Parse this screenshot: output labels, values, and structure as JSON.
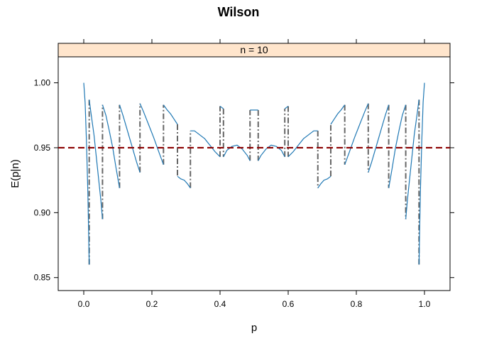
{
  "chart_data": {
    "type": "line",
    "title": "Wilson",
    "panel_label": "n = 10",
    "xlabel": "p",
    "ylabel": "E(p|n)",
    "xlim": [
      -0.075,
      1.075
    ],
    "ylim": [
      0.84,
      1.02
    ],
    "x_ticks": [
      0.0,
      0.2,
      0.4,
      0.6,
      0.8,
      1.0
    ],
    "x_tick_labels": [
      "0.0",
      "0.2",
      "0.4",
      "0.6",
      "0.8",
      "1.0"
    ],
    "y_ticks": [
      0.85,
      0.9,
      0.95,
      1.0
    ],
    "y_tick_labels": [
      "0.85",
      "0.90",
      "0.95",
      "1.00"
    ],
    "reference_line": {
      "y": 0.95,
      "style": "dashed",
      "color": "#8B0000"
    },
    "series_color": "#1f78b4",
    "jump_color": "#666666",
    "strip_fill": "#ffe5cc",
    "segments": [
      {
        "x": [
          0.0,
          0.004,
          0.008,
          0.012,
          0.016
        ],
        "y": [
          1.0,
          0.985,
          0.955,
          0.915,
          0.86
        ]
      },
      {
        "x": [
          0.016,
          0.022,
          0.03,
          0.04,
          0.05,
          0.055
        ],
        "y": [
          0.987,
          0.975,
          0.96,
          0.935,
          0.91,
          0.895
        ]
      },
      {
        "x": [
          0.055,
          0.065,
          0.075,
          0.085,
          0.095,
          0.105
        ],
        "y": [
          0.983,
          0.975,
          0.963,
          0.95,
          0.934,
          0.919
        ]
      },
      {
        "x": [
          0.105,
          0.115,
          0.125,
          0.135,
          0.145,
          0.155,
          0.165
        ],
        "y": [
          0.983,
          0.975,
          0.966,
          0.957,
          0.948,
          0.939,
          0.931
        ]
      },
      {
        "x": [
          0.165,
          0.175,
          0.19,
          0.205,
          0.22,
          0.234
        ],
        "y": [
          0.984,
          0.978,
          0.968,
          0.958,
          0.947,
          0.937
        ]
      },
      {
        "x": [
          0.234,
          0.245,
          0.255,
          0.265,
          0.275
        ],
        "y": [
          0.983,
          0.979,
          0.976,
          0.972,
          0.968
        ]
      },
      {
        "x": [
          0.275,
          0.285,
          0.295,
          0.305,
          0.313
        ],
        "y": [
          0.928,
          0.926,
          0.925,
          0.922,
          0.919
        ]
      },
      {
        "x": [
          0.313,
          0.325,
          0.34,
          0.355,
          0.37,
          0.385,
          0.4
        ],
        "y": [
          0.963,
          0.963,
          0.96,
          0.957,
          0.952,
          0.947,
          0.943
        ]
      },
      {
        "x": [
          0.4,
          0.405,
          0.41
        ],
        "y": [
          0.982,
          0.981,
          0.98
        ]
      },
      {
        "x": [
          0.41,
          0.42,
          0.435,
          0.45,
          0.465,
          0.48,
          0.488
        ],
        "y": [
          0.943,
          0.948,
          0.951,
          0.952,
          0.949,
          0.944,
          0.94
        ]
      },
      {
        "x": [
          0.488,
          0.5,
          0.512
        ],
        "y": [
          0.979,
          0.979,
          0.979
        ]
      },
      {
        "x": [
          0.512,
          0.52,
          0.535,
          0.55,
          0.565,
          0.58,
          0.59
        ],
        "y": [
          0.94,
          0.944,
          0.949,
          0.952,
          0.951,
          0.948,
          0.943
        ]
      },
      {
        "x": [
          0.59,
          0.595,
          0.6
        ],
        "y": [
          0.98,
          0.981,
          0.982
        ]
      },
      {
        "x": [
          0.6,
          0.615,
          0.63,
          0.645,
          0.66,
          0.675,
          0.687
        ],
        "y": [
          0.943,
          0.947,
          0.952,
          0.957,
          0.96,
          0.963,
          0.963
        ]
      },
      {
        "x": [
          0.687,
          0.695,
          0.705,
          0.715,
          0.725
        ],
        "y": [
          0.919,
          0.922,
          0.925,
          0.926,
          0.928
        ]
      },
      {
        "x": [
          0.725,
          0.735,
          0.745,
          0.755,
          0.766
        ],
        "y": [
          0.968,
          0.972,
          0.976,
          0.979,
          0.983
        ]
      },
      {
        "x": [
          0.766,
          0.78,
          0.795,
          0.81,
          0.825,
          0.835
        ],
        "y": [
          0.937,
          0.947,
          0.958,
          0.968,
          0.978,
          0.984
        ]
      },
      {
        "x": [
          0.835,
          0.845,
          0.855,
          0.865,
          0.875,
          0.885,
          0.895
        ],
        "y": [
          0.931,
          0.939,
          0.948,
          0.957,
          0.966,
          0.975,
          0.983
        ]
      },
      {
        "x": [
          0.895,
          0.905,
          0.915,
          0.925,
          0.935,
          0.945
        ],
        "y": [
          0.919,
          0.934,
          0.95,
          0.963,
          0.975,
          0.983
        ]
      },
      {
        "x": [
          0.945,
          0.95,
          0.96,
          0.97,
          0.978,
          0.984
        ],
        "y": [
          0.895,
          0.91,
          0.935,
          0.96,
          0.975,
          0.987
        ]
      },
      {
        "x": [
          0.984,
          0.988,
          0.992,
          0.996,
          1.0
        ],
        "y": [
          0.86,
          0.915,
          0.955,
          0.985,
          1.0
        ]
      }
    ],
    "jumps": [
      {
        "x": 0.016,
        "from": 0.86,
        "to": 0.987
      },
      {
        "x": 0.055,
        "from": 0.895,
        "to": 0.983
      },
      {
        "x": 0.105,
        "from": 0.919,
        "to": 0.983
      },
      {
        "x": 0.165,
        "from": 0.931,
        "to": 0.984
      },
      {
        "x": 0.234,
        "from": 0.937,
        "to": 0.983
      },
      {
        "x": 0.275,
        "from": 0.968,
        "to": 0.928
      },
      {
        "x": 0.313,
        "from": 0.919,
        "to": 0.963
      },
      {
        "x": 0.4,
        "from": 0.943,
        "to": 0.982
      },
      {
        "x": 0.41,
        "from": 0.98,
        "to": 0.943
      },
      {
        "x": 0.488,
        "from": 0.94,
        "to": 0.979
      },
      {
        "x": 0.512,
        "from": 0.979,
        "to": 0.94
      },
      {
        "x": 0.59,
        "from": 0.943,
        "to": 0.98
      },
      {
        "x": 0.6,
        "from": 0.982,
        "to": 0.943
      },
      {
        "x": 0.687,
        "from": 0.963,
        "to": 0.919
      },
      {
        "x": 0.725,
        "from": 0.928,
        "to": 0.968
      },
      {
        "x": 0.766,
        "from": 0.983,
        "to": 0.937
      },
      {
        "x": 0.835,
        "from": 0.984,
        "to": 0.931
      },
      {
        "x": 0.895,
        "from": 0.983,
        "to": 0.919
      },
      {
        "x": 0.945,
        "from": 0.983,
        "to": 0.895
      },
      {
        "x": 0.984,
        "from": 0.987,
        "to": 0.86
      }
    ]
  }
}
